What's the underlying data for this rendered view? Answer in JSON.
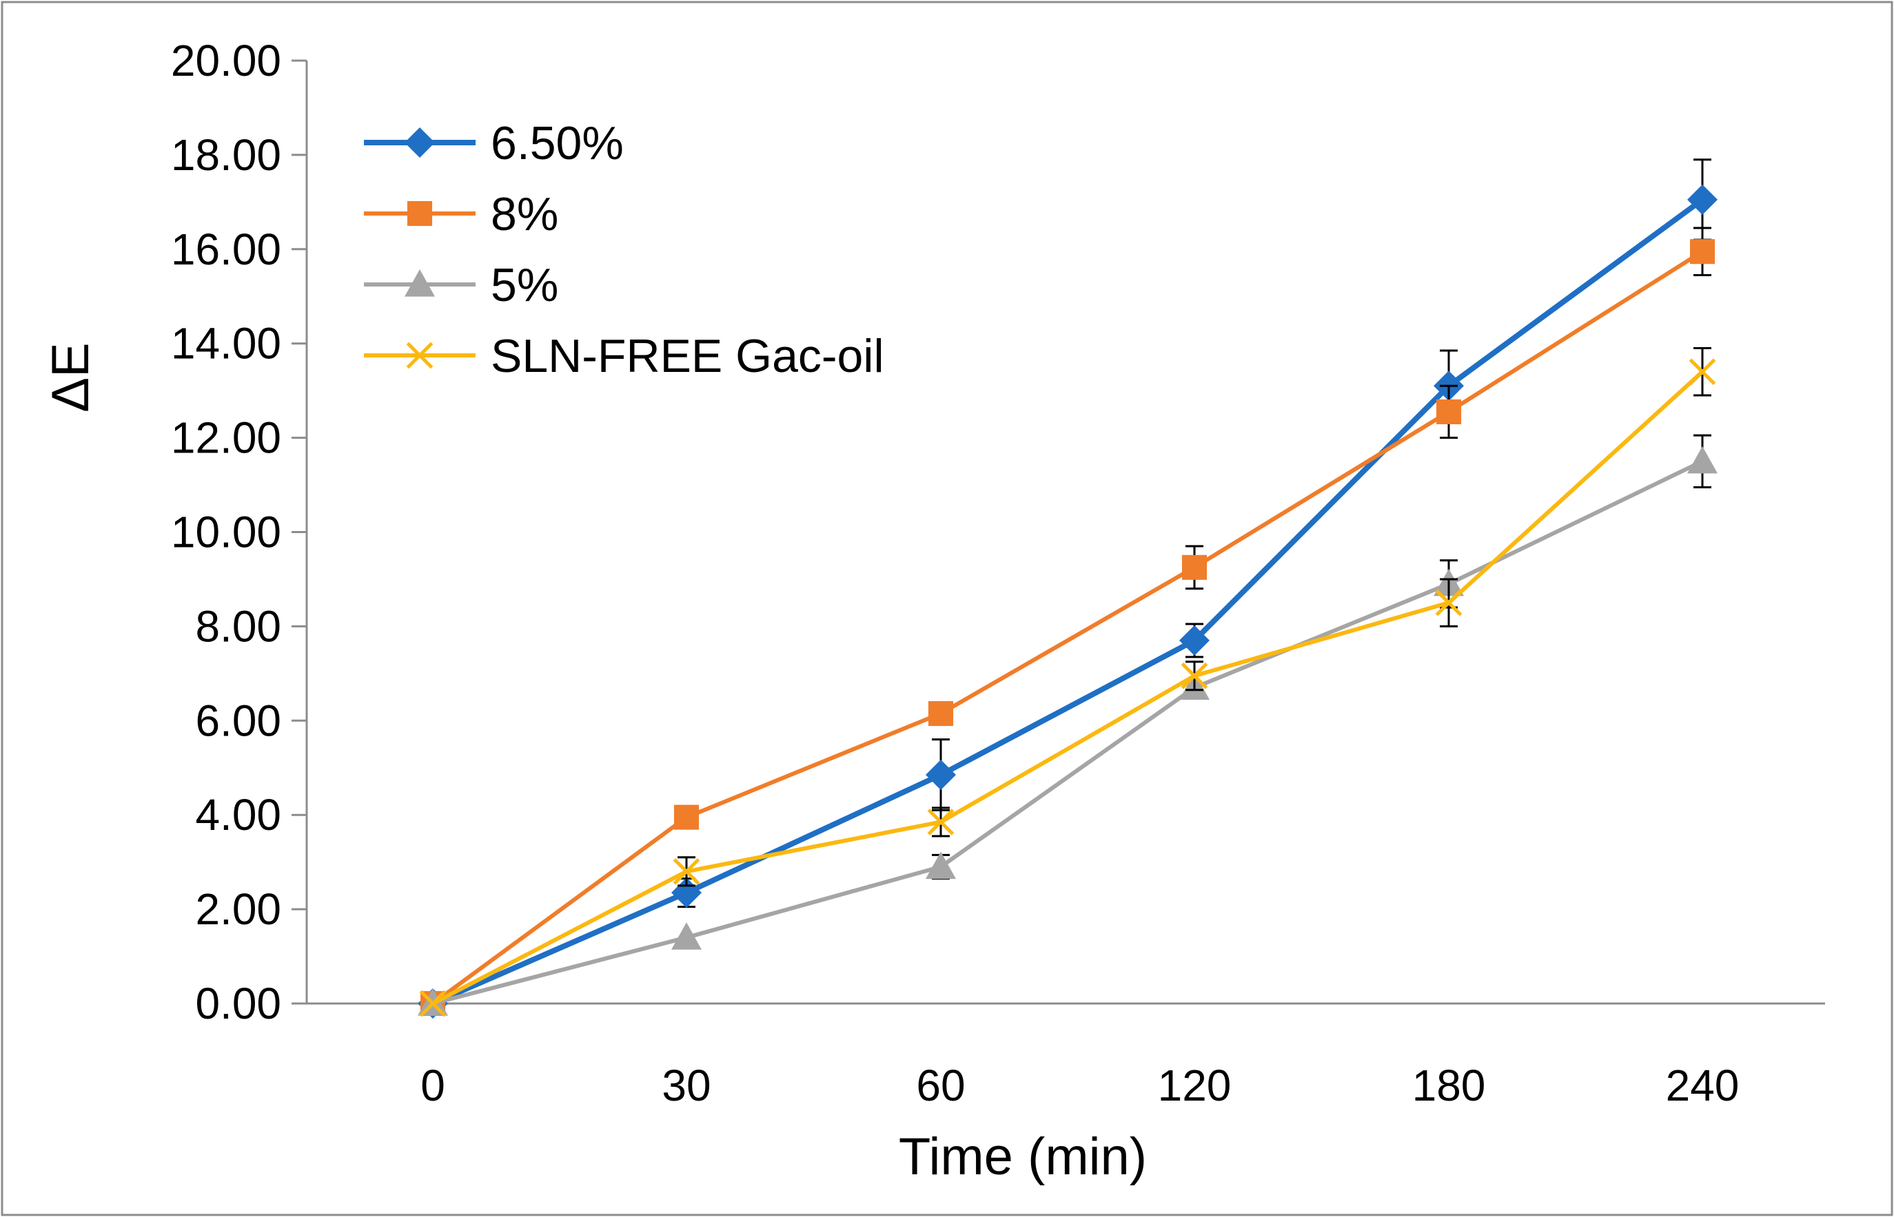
{
  "chart_data": {
    "type": "line",
    "title": "",
    "xlabel": "Time (min)",
    "ylabel": "ΔE",
    "categories": [
      "0",
      "30",
      "60",
      "120",
      "180",
      "240"
    ],
    "ylim": [
      0,
      20
    ],
    "ytick_values": [
      0,
      2,
      4,
      6,
      8,
      10,
      12,
      14,
      16,
      18,
      20
    ],
    "ytick_labels": [
      "0.00",
      "2.00",
      "4.00",
      "6.00",
      "8.00",
      "10.00",
      "12.00",
      "14.00",
      "16.00",
      "18.00",
      "20.00"
    ],
    "grid": false,
    "legend_position": "top-left",
    "series": [
      {
        "name": "6.50%",
        "color": "#1F6FC5",
        "marker": "diamond",
        "values": [
          0,
          2.35,
          4.85,
          7.7,
          13.1,
          17.05
        ],
        "errors": [
          0,
          0.3,
          0.75,
          0.35,
          0.75,
          0.85
        ]
      },
      {
        "name": "8%",
        "color": "#F07D2A",
        "marker": "square",
        "values": [
          0,
          3.95,
          6.15,
          9.25,
          12.55,
          15.95
        ],
        "errors": [
          0,
          0,
          0,
          0.45,
          0.55,
          0.5
        ]
      },
      {
        "name": "5%",
        "color": "#A5A5A5",
        "marker": "triangle",
        "values": [
          0,
          1.4,
          2.9,
          6.7,
          8.9,
          11.5
        ],
        "errors": [
          0,
          0,
          0.25,
          0,
          0.5,
          0.55
        ]
      },
      {
        "name": "SLN-FREE Gac-oil",
        "color": "#FBB811",
        "marker": "x",
        "values": [
          0,
          2.8,
          3.85,
          6.95,
          8.5,
          13.4
        ],
        "errors": [
          0,
          0.3,
          0.3,
          0.3,
          0.5,
          0.5
        ]
      }
    ]
  }
}
